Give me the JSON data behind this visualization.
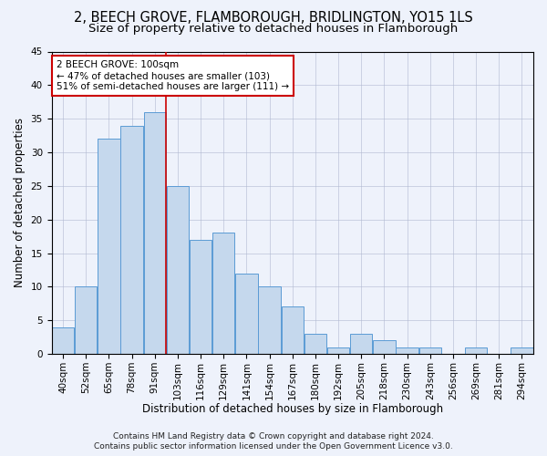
{
  "title_line1": "2, BEECH GROVE, FLAMBOROUGH, BRIDLINGTON, YO15 1LS",
  "title_line2": "Size of property relative to detached houses in Flamborough",
  "xlabel": "Distribution of detached houses by size in Flamborough",
  "ylabel": "Number of detached properties",
  "categories": [
    "40sqm",
    "52sqm",
    "65sqm",
    "78sqm",
    "91sqm",
    "103sqm",
    "116sqm",
    "129sqm",
    "141sqm",
    "154sqm",
    "167sqm",
    "180sqm",
    "192sqm",
    "205sqm",
    "218sqm",
    "230sqm",
    "243sqm",
    "256sqm",
    "269sqm",
    "281sqm",
    "294sqm"
  ],
  "values": [
    4,
    10,
    32,
    34,
    36,
    25,
    17,
    18,
    12,
    10,
    7,
    3,
    1,
    3,
    2,
    1,
    1,
    0,
    1,
    0,
    1
  ],
  "bar_color": "#c5d8ed",
  "bar_edge_color": "#5b9bd5",
  "vline_x_index": 4,
  "vline_color": "#cc0000",
  "annotation_line1": "2 BEECH GROVE: 100sqm",
  "annotation_line2": "← 47% of detached houses are smaller (103)",
  "annotation_line3": "51% of semi-detached houses are larger (111) →",
  "annotation_box_facecolor": "#ffffff",
  "annotation_box_edgecolor": "#cc0000",
  "ylim": [
    0,
    45
  ],
  "yticks": [
    0,
    5,
    10,
    15,
    20,
    25,
    30,
    35,
    40,
    45
  ],
  "background_color": "#eef2fb",
  "plot_background": "#eef2fb",
  "footer_line1": "Contains HM Land Registry data © Crown copyright and database right 2024.",
  "footer_line2": "Contains public sector information licensed under the Open Government Licence v3.0.",
  "title_fontsize": 10.5,
  "subtitle_fontsize": 9.5,
  "axis_label_fontsize": 8.5,
  "tick_fontsize": 7.5,
  "annotation_fontsize": 7.5,
  "footer_fontsize": 6.5,
  "ylabel_fontsize": 8.5
}
